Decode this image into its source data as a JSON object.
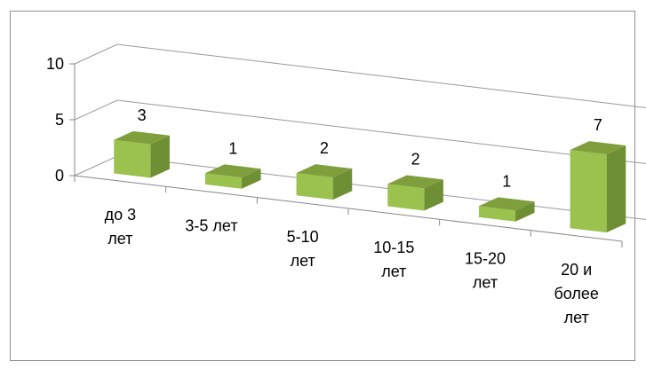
{
  "chart_data": {
    "type": "bar",
    "title": "",
    "xlabel": "",
    "ylabel": "",
    "categories": [
      [
        "до 3",
        "лет"
      ],
      [
        "3-5 лет"
      ],
      [
        "5-10",
        "лет"
      ],
      [
        "10-15",
        "лет"
      ],
      [
        "15-20",
        "лет"
      ],
      [
        "20 и",
        "более",
        "лет"
      ]
    ],
    "values": [
      3,
      1,
      2,
      2,
      1,
      7
    ],
    "ylim": [
      0,
      10
    ],
    "yticks": [
      "0",
      "5",
      "10"
    ],
    "grid": true,
    "legend": "none",
    "style": "3d-perspective",
    "colors": {
      "bar_front": "#9bc14e",
      "bar_top": "#7f9f3c",
      "bar_side": "#6f8f34",
      "axis": "#888888",
      "grid": "#999999",
      "border": "#8f8f8f"
    }
  }
}
